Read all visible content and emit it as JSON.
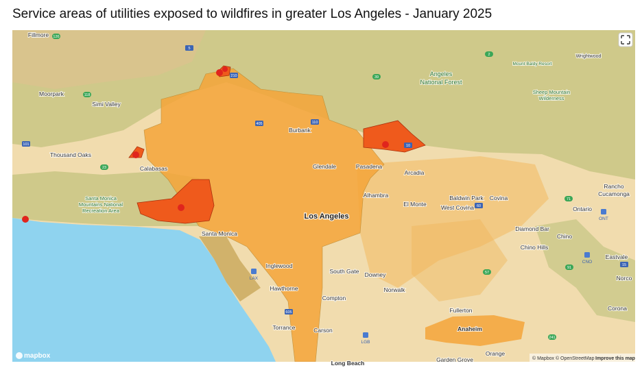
{
  "title": "Service areas of utilities exposed to wildfires in greater Los Angeles - January 2025",
  "places": {
    "fillmore": "Fillmore",
    "moorpark": "Moorpark",
    "simi_valley": "Simi Valley",
    "thousand_oaks": "Thousand Oaks",
    "calabasas": "Calabasas",
    "burbank": "Burbank",
    "glendale": "Glendale",
    "pasadena": "Pasadena",
    "arcadia": "Arcadia",
    "alhambra": "Alhambra",
    "el_monte": "El Monte",
    "baldwin_park": "Baldwin Park",
    "covina": "Covina",
    "west_covina": "West Covina",
    "los_angeles": "Los Angeles",
    "santa_monica": "Santa Monica",
    "diamond_bar": "Diamond Bar",
    "chino": "Chino",
    "chino_hills": "Chino Hills",
    "ontario": "Ontario",
    "inglewood": "Inglewood",
    "south_gate": "South Gate",
    "downey": "Downey",
    "eastvale": "Eastvale",
    "norco": "Norco",
    "hawthorne": "Hawthorne",
    "norwalk": "Norwalk",
    "compton": "Compton",
    "corona": "Corona",
    "fullerton": "Fullerton",
    "torrance": "Torrance",
    "carson": "Carson",
    "anaheim": "Anaheim",
    "orange": "Orange",
    "garden_grove": "Garden Grove",
    "long_beach": "Long Beach",
    "wrightwood": "Wrightwood",
    "mount_baldy": "Mount Baldy Resort",
    "rancho_cucamonga": [
      "Rancho",
      "Cucamonga"
    ]
  },
  "parks": {
    "angeles": [
      "Angeles",
      "National Forest"
    ],
    "sheep_mountain": [
      "Sheep Mountain",
      "Wilderness"
    ],
    "santa_monica_mountains": [
      "Santa Monica",
      "Mountains National",
      "Recreation Area"
    ]
  },
  "airports": [
    "LAX",
    "LGB",
    "ONT",
    "CNO"
  ],
  "road_shields": [
    "126",
    "5",
    "2",
    "210",
    "118",
    "101",
    "23",
    "405",
    "110",
    "605",
    "57",
    "91",
    "71",
    "15",
    "60",
    "10",
    "241",
    "39"
  ],
  "logo": "mapbox",
  "attribution": "© Mapbox © OpenStreetMap",
  "improve": "Improve this map"
}
